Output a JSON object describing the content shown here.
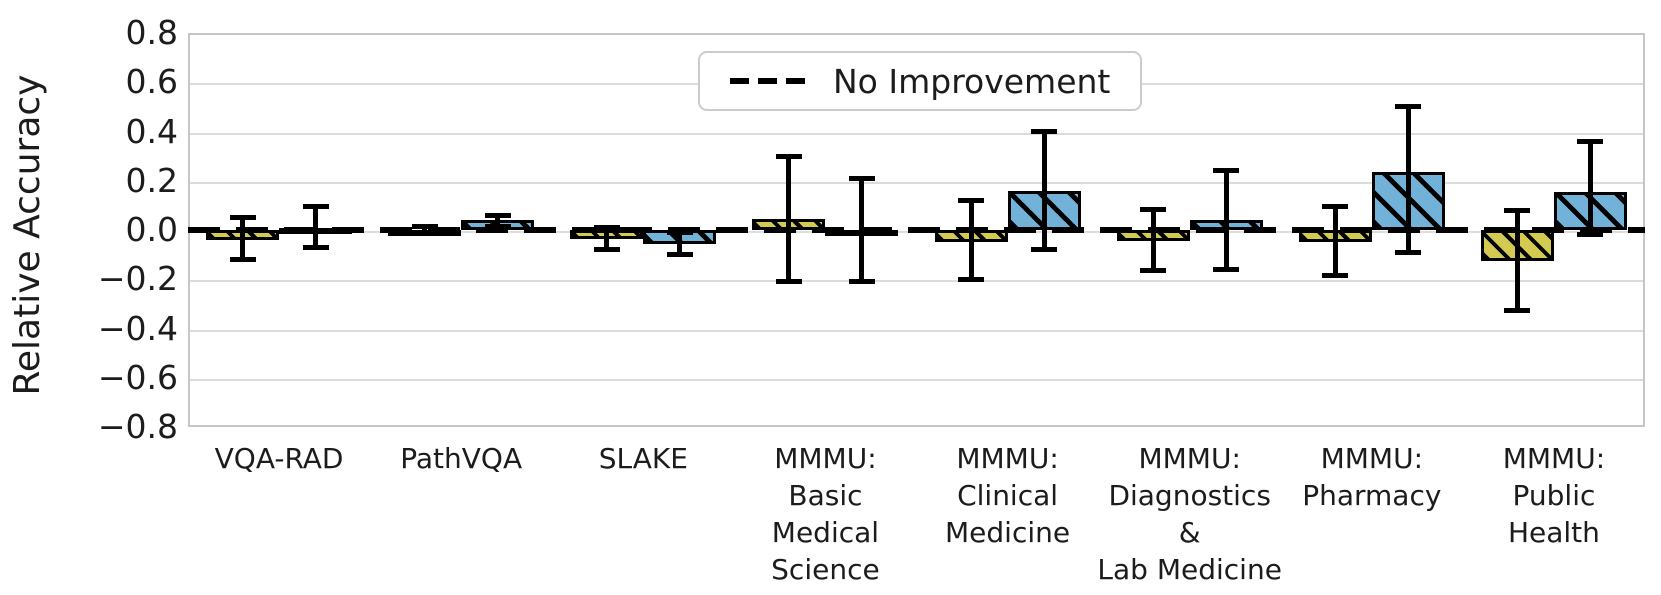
{
  "chart_data": {
    "type": "bar",
    "title": "",
    "xlabel": "",
    "ylabel": "Relative Accuracy",
    "ylim": [
      -0.8,
      0.8
    ],
    "yticks": [
      0.8,
      0.6,
      0.4,
      0.2,
      0.0,
      -0.2,
      -0.4,
      -0.6,
      -0.8
    ],
    "grid": true,
    "categories": [
      [
        "VQA-RAD"
      ],
      [
        "PathVQA"
      ],
      [
        "SLAKE"
      ],
      [
        "MMMU:",
        "Basic",
        "Medical",
        "Science"
      ],
      [
        "MMMU:",
        "Clinical",
        "Medicine"
      ],
      [
        "MMMU:",
        "Diagnostics",
        "&",
        "Lab Medicine"
      ],
      [
        "MMMU:",
        "Pharmacy"
      ],
      [
        "MMMU:",
        "Public",
        "Health"
      ]
    ],
    "series": [
      {
        "id": "yellow-hatched-series",
        "color": "#d3ca52",
        "hatch": "\\\\",
        "values": [
          -0.04,
          0.0,
          -0.035,
          0.045,
          -0.05,
          -0.045,
          -0.05,
          -0.125
        ],
        "err_lo": [
          -0.12,
          -0.015,
          -0.08,
          -0.21,
          -0.2,
          -0.165,
          -0.185,
          -0.325
        ],
        "err_hi": [
          0.05,
          0.015,
          0.01,
          0.3,
          0.12,
          0.085,
          0.095,
          0.08
        ]
      },
      {
        "id": "blue-hatched-series",
        "color": "#73b2d8",
        "hatch": "\\\\",
        "values": [
          0.01,
          0.04,
          -0.055,
          0.0,
          0.16,
          0.04,
          0.235,
          0.155
        ],
        "err_lo": [
          -0.07,
          0.015,
          -0.1,
          -0.21,
          -0.08,
          -0.16,
          -0.09,
          -0.02
        ],
        "err_hi": [
          0.095,
          0.06,
          -0.01,
          0.21,
          0.4,
          0.24,
          0.5,
          0.36
        ]
      }
    ],
    "zero_line": {
      "value": 0,
      "style": "dashed",
      "color": "#000000"
    },
    "legend": {
      "label": "No Improvement",
      "marker": "dashed-line",
      "position": "upper center"
    },
    "error_bar_color": "#000000",
    "grid_color": "#dcdcdc"
  }
}
